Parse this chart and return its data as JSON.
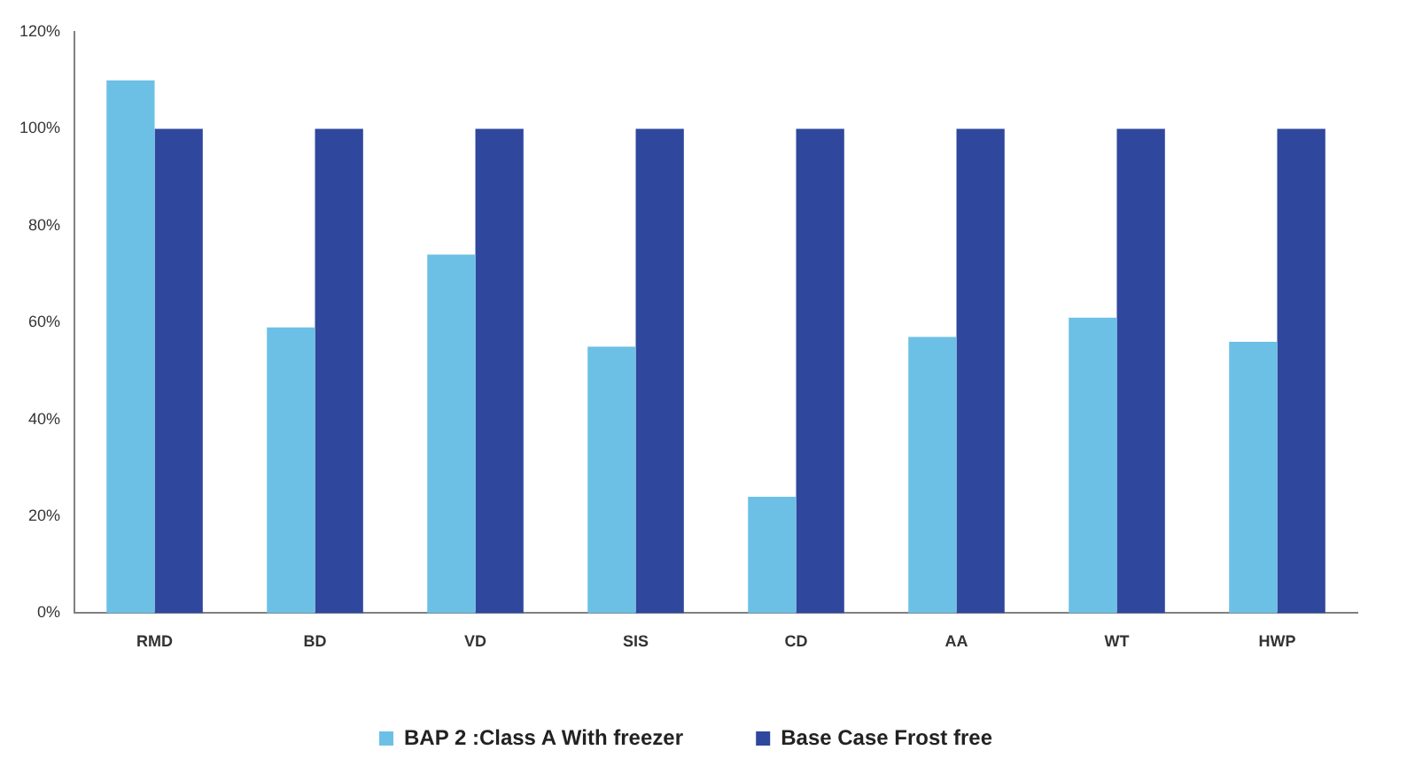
{
  "chart_data": {
    "type": "bar",
    "categories": [
      "RMD",
      "BD",
      "VD",
      "SIS",
      "CD",
      "AA",
      "WT",
      "HWP"
    ],
    "series": [
      {
        "name": "BAP 2 :Class A With freezer",
        "color": "#6cc0e5",
        "values": [
          110,
          59,
          74,
          55,
          24,
          57,
          61,
          56
        ]
      },
      {
        "name": "Base Case Frost free",
        "color": "#2f479c",
        "values": [
          100,
          100,
          100,
          100,
          100,
          100,
          100,
          100
        ]
      }
    ],
    "ylim": [
      0,
      120
    ],
    "yticks": [
      {
        "value": 0,
        "label": "0%"
      },
      {
        "value": 20,
        "label": "20%"
      },
      {
        "value": 40,
        "label": "40%"
      },
      {
        "value": 60,
        "label": "60%"
      },
      {
        "value": 80,
        "label": "80%"
      },
      {
        "value": 100,
        "label": "100%"
      },
      {
        "value": 120,
        "label": "120%"
      }
    ],
    "grid": false,
    "legend": "bottom"
  }
}
